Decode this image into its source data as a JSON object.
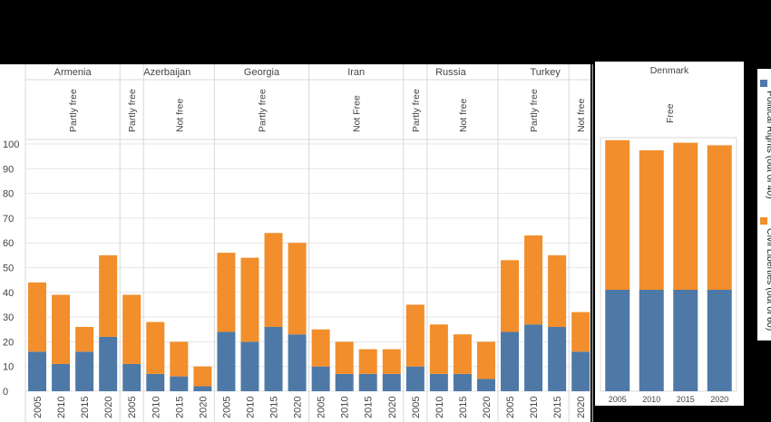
{
  "colors": {
    "political": "#4e79a7",
    "civil": "#f28e2b",
    "grid": "#e6e6e6",
    "divider": "#d8d8d8"
  },
  "legend": {
    "political": "Political Rights (out of 40)",
    "civil": "Civil Liberties (out of 60)"
  },
  "chart_data": [
    {
      "type": "bar",
      "stacked": true,
      "ylim": [
        0,
        100
      ],
      "yticks": [
        0,
        10,
        20,
        30,
        40,
        50,
        60,
        70,
        80,
        90,
        100
      ],
      "grid": true,
      "countries": [
        {
          "name": "Armenia",
          "groups": [
            {
              "status": "Partly free",
              "years": [
                "2005",
                "2010",
                "2015",
                "2020"
              ],
              "political": [
                16,
                11,
                16,
                22
              ],
              "civil": [
                28,
                28,
                10,
                33
              ]
            }
          ]
        },
        {
          "name": "Azerbaijan",
          "groups": [
            {
              "status": "Partly free",
              "years": [
                "2005"
              ],
              "political": [
                11
              ],
              "civil": [
                28
              ]
            },
            {
              "status": "Not free",
              "years": [
                "2010",
                "2015",
                "2020"
              ],
              "political": [
                7,
                6,
                2
              ],
              "civil": [
                21,
                14,
                8
              ]
            }
          ]
        },
        {
          "name": "Georgia",
          "groups": [
            {
              "status": "Partly free",
              "years": [
                "2005",
                "2010",
                "2015",
                "2020"
              ],
              "political": [
                24,
                20,
                26,
                23
              ],
              "civil": [
                32,
                34,
                38,
                37
              ]
            }
          ]
        },
        {
          "name": "Iran",
          "groups": [
            {
              "status": "Not Free",
              "years": [
                "2005",
                "2010",
                "2015",
                "2020"
              ],
              "political": [
                10,
                7,
                7,
                7
              ],
              "civil": [
                15,
                13,
                10,
                10
              ]
            }
          ]
        },
        {
          "name": "Russia",
          "groups": [
            {
              "status": "Partly free",
              "years": [
                "2005"
              ],
              "political": [
                10
              ],
              "civil": [
                25
              ]
            },
            {
              "status": "Not free",
              "years": [
                "2010",
                "2015",
                "2020"
              ],
              "political": [
                7,
                7,
                5
              ],
              "civil": [
                20,
                16,
                15
              ]
            }
          ]
        },
        {
          "name": "Turkey",
          "groups": [
            {
              "status": "Partly free",
              "years": [
                "2005",
                "2010",
                "2015"
              ],
              "political": [
                24,
                27,
                26
              ],
              "civil": [
                29,
                36,
                29
              ]
            },
            {
              "status": "Not free",
              "years": [
                "2020"
              ],
              "political": [
                16
              ],
              "civil": [
                16
              ]
            }
          ]
        }
      ]
    },
    {
      "type": "bar",
      "stacked": true,
      "ylim": [
        0,
        100
      ],
      "grid": false,
      "countries": [
        {
          "name": "Denmark",
          "groups": [
            {
              "status": "Free",
              "years": [
                "2005",
                "2010",
                "2015",
                "2020"
              ],
              "political": [
                40,
                40,
                40,
                40
              ],
              "civil": [
                59,
                55,
                58,
                57
              ]
            }
          ]
        }
      ]
    }
  ]
}
